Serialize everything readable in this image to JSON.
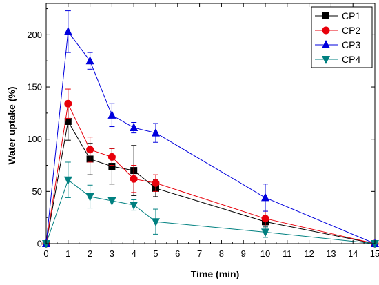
{
  "chart_data": {
    "type": "line",
    "title": "",
    "xlabel": "Time (min)",
    "ylabel": "Water uptake (%)",
    "xlim": [
      0,
      15
    ],
    "ylim": [
      0,
      230
    ],
    "xticks": [
      0,
      1,
      2,
      3,
      4,
      5,
      6,
      7,
      8,
      9,
      10,
      11,
      12,
      13,
      14,
      15
    ],
    "yticks": [
      0,
      50,
      100,
      150,
      200
    ],
    "grid": false,
    "legend_position": "top-right",
    "x": [
      0,
      1,
      2,
      3,
      4,
      5,
      10,
      15
    ],
    "series": [
      {
        "name": "CP1",
        "color": "#000000",
        "marker": "square",
        "values": [
          0,
          117,
          81,
          74,
          70,
          53,
          21,
          0
        ],
        "errors": [
          0,
          18,
          15,
          17,
          24,
          8,
          4,
          0
        ]
      },
      {
        "name": "CP2",
        "color": "#e8000b",
        "marker": "circle",
        "values": [
          0,
          134,
          90,
          83,
          62,
          58,
          24,
          0
        ],
        "errors": [
          0,
          14,
          12,
          8,
          13,
          8,
          8,
          0
        ]
      },
      {
        "name": "CP3",
        "color": "#0000dd",
        "marker": "triangle-up",
        "values": [
          0,
          203,
          175,
          123,
          111,
          106,
          44,
          0
        ],
        "errors": [
          0,
          20,
          8,
          11,
          5,
          9,
          13,
          0
        ]
      },
      {
        "name": "CP4",
        "color": "#008080",
        "marker": "triangle-down",
        "values": [
          0,
          61,
          45,
          41,
          37,
          21,
          11,
          0
        ],
        "errors": [
          0,
          17,
          11,
          3,
          5,
          12,
          5,
          0
        ]
      }
    ]
  }
}
